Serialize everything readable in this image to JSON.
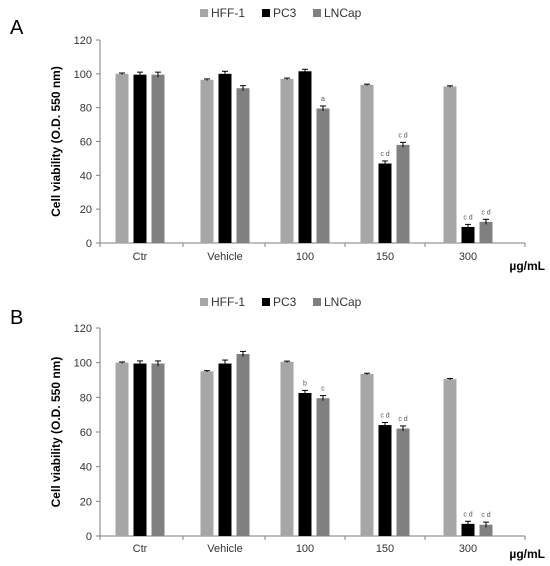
{
  "chart_data": [
    {
      "panel": "A",
      "type": "bar",
      "title": "",
      "xlabel": "µg/mL",
      "ylabel": "Cell viability (O.D. 550 nm)",
      "ylim": [
        0,
        120
      ],
      "yticks": [
        0,
        20,
        40,
        60,
        80,
        100,
        120
      ],
      "grid": false,
      "legend_position": "top",
      "categories": [
        "Ctr",
        "Vehicle",
        "100",
        "150",
        "300"
      ],
      "series": [
        {
          "name": "HFF-1",
          "color": "#a6a6a6",
          "values": [
            100,
            96.5,
            97,
            93.5,
            92.5
          ],
          "errors": [
            0.5,
            0.5,
            0.5,
            0.4,
            0.4
          ],
          "annotations": [
            "",
            "",
            "",
            "",
            ""
          ]
        },
        {
          "name": "PC3",
          "color": "#000000",
          "values": [
            99.5,
            100,
            101.5,
            47,
            9.5
          ],
          "errors": [
            1.5,
            1.5,
            1.2,
            1.5,
            1.5
          ],
          "annotations": [
            "",
            "",
            "",
            "c d",
            "c d"
          ]
        },
        {
          "name": "LNCap",
          "color": "#808080",
          "values": [
            99.5,
            91.5,
            79.5,
            58,
            12.5
          ],
          "errors": [
            1.5,
            1.5,
            1.5,
            1.5,
            1.5
          ],
          "annotations": [
            "",
            "",
            "a",
            "c d",
            "c d"
          ]
        }
      ]
    },
    {
      "panel": "B",
      "type": "bar",
      "title": "",
      "xlabel": "µg/mL",
      "ylabel": "Cell viability (O.D. 550 nm)",
      "ylim": [
        0,
        120
      ],
      "yticks": [
        0,
        20,
        40,
        60,
        80,
        100,
        120
      ],
      "grid": false,
      "legend_position": "top",
      "categories": [
        "Ctr",
        "Vehicle",
        "100",
        "150",
        "300"
      ],
      "series": [
        {
          "name": "HFF-1",
          "color": "#a6a6a6",
          "values": [
            100,
            95,
            100.5,
            93.5,
            90.5
          ],
          "errors": [
            0.4,
            0.4,
            0.4,
            0.4,
            0.4
          ],
          "annotations": [
            "",
            "",
            "",
            "",
            ""
          ]
        },
        {
          "name": "PC3",
          "color": "#000000",
          "values": [
            99.5,
            99.5,
            82.5,
            64,
            7
          ],
          "errors": [
            1.5,
            2,
            1.5,
            1.5,
            1.5
          ],
          "annotations": [
            "",
            "",
            "b",
            "c d",
            "c d"
          ]
        },
        {
          "name": "LNCap",
          "color": "#808080",
          "values": [
            99.5,
            105,
            79.5,
            62,
            6.5
          ],
          "errors": [
            1.5,
            1.5,
            1.5,
            1.5,
            1.5
          ],
          "annotations": [
            "",
            "",
            "c",
            "c d",
            "c d"
          ]
        }
      ]
    }
  ]
}
